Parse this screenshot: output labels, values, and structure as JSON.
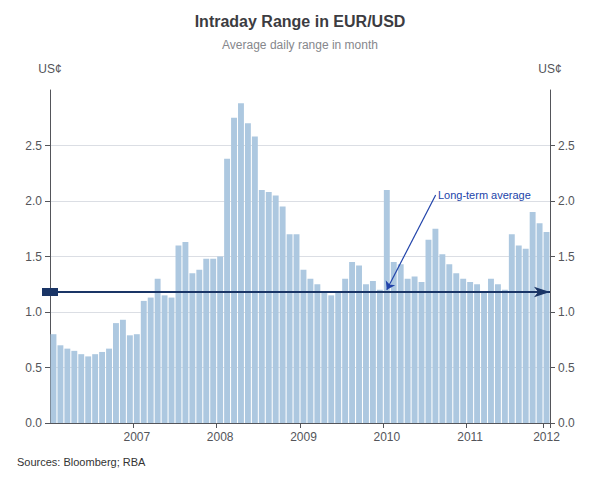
{
  "chart_data": {
    "type": "bar",
    "title": "Intraday Range in EUR/USD",
    "subtitle": "Average daily range in month",
    "source": "Sources: Bloomberg; RBA",
    "ylabel": "US¢",
    "y2label": "US¢",
    "categories": [
      null,
      null,
      null,
      null,
      null,
      null,
      null,
      null,
      null,
      null,
      null,
      null,
      "2007",
      null,
      null,
      null,
      null,
      null,
      null,
      null,
      null,
      null,
      null,
      null,
      "2008",
      null,
      null,
      null,
      null,
      null,
      null,
      null,
      null,
      null,
      null,
      null,
      "2009",
      null,
      null,
      null,
      null,
      null,
      null,
      null,
      null,
      null,
      null,
      null,
      "2010",
      null,
      null,
      null,
      null,
      null,
      null,
      null,
      null,
      null,
      null,
      null,
      "2011",
      null,
      null,
      null,
      null,
      null,
      null,
      null,
      null,
      null,
      null,
      "2012"
    ],
    "values": [
      0.8,
      0.7,
      0.67,
      0.65,
      0.62,
      0.6,
      0.62,
      0.64,
      0.67,
      0.9,
      0.93,
      0.79,
      0.8,
      1.1,
      1.13,
      1.3,
      1.15,
      1.13,
      1.6,
      1.63,
      1.35,
      1.38,
      1.48,
      1.48,
      1.5,
      2.38,
      2.75,
      2.88,
      2.7,
      2.58,
      2.1,
      2.08,
      2.05,
      1.95,
      1.7,
      1.7,
      1.38,
      1.3,
      1.25,
      1.18,
      1.15,
      1.18,
      1.3,
      1.45,
      1.42,
      1.25,
      1.28,
      1.2,
      2.1,
      1.45,
      1.43,
      1.3,
      1.32,
      1.27,
      1.65,
      1.75,
      1.52,
      1.43,
      1.35,
      1.3,
      1.27,
      1.25,
      1.18,
      1.3,
      1.25,
      1.2,
      1.7,
      1.6,
      1.57,
      1.9,
      1.8,
      1.72
    ],
    "color": "#adc8e0",
    "ylim": [
      0.0,
      3.0
    ],
    "yticks": [
      {
        "value": 0.0,
        "label": "0.0"
      },
      0.5,
      {
        "value": 1.0,
        "label": "1.0"
      },
      1.5,
      {
        "value": 2.0,
        "label": "2.0"
      },
      2.5
    ],
    "y2lim": [
      0.0,
      3.0
    ],
    "y2ticks": [
      {
        "value": 0.0,
        "label": "0.0"
      },
      0.5,
      {
        "value": 1.0,
        "label": "1.0"
      },
      1.5,
      {
        "value": 2.0,
        "label": "2.0"
      },
      2.5
    ],
    "grid": true,
    "reference_line": {
      "value": 1.18,
      "color": "#1a3566"
    },
    "annotation": {
      "text": "Long-term average",
      "x": 55,
      "y": 2.05,
      "arrow_x": 48,
      "arrow_y": 1.2,
      "color": "#2244aa"
    }
  }
}
